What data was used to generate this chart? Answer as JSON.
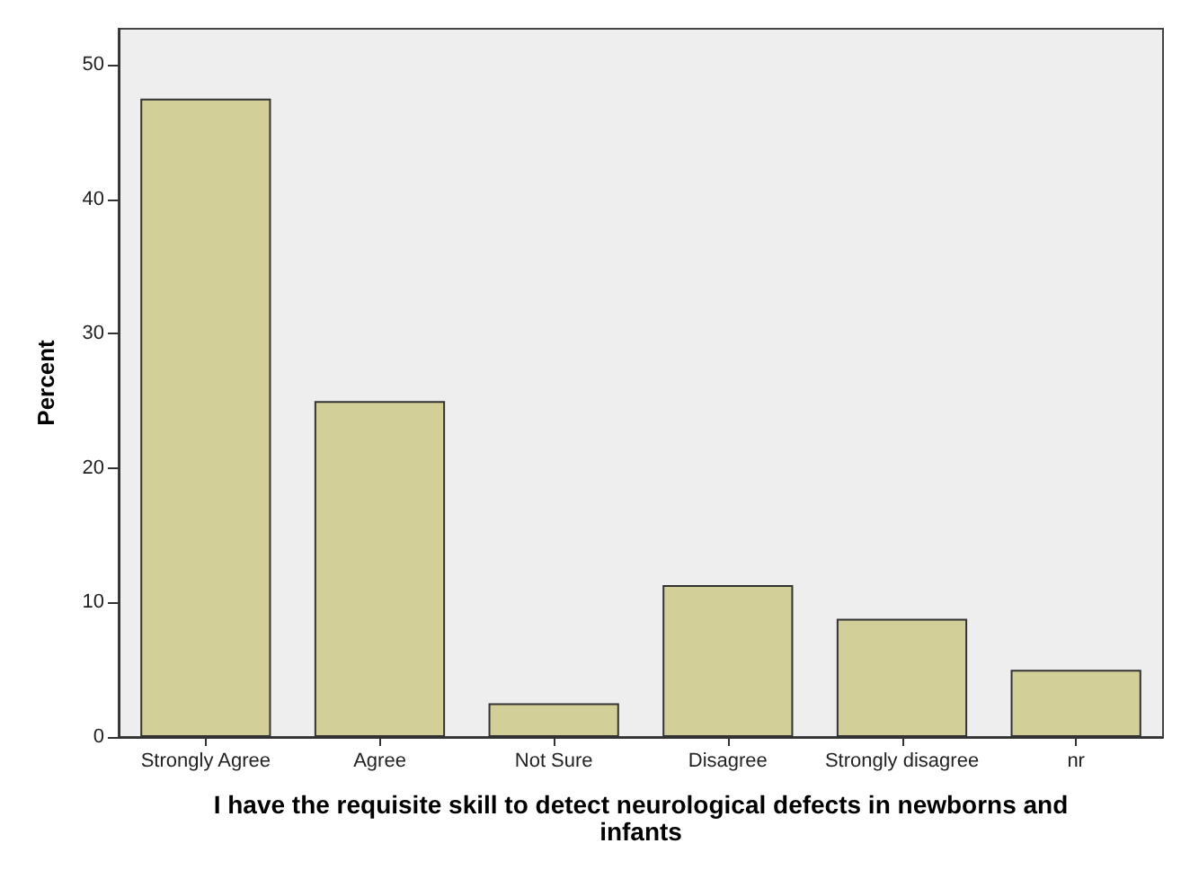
{
  "chart_data": {
    "type": "bar",
    "xlabel": "I have the requisite skill to detect neurological defects in newborns and\ninfants",
    "ylabel": "Percent",
    "categories": [
      "Strongly Agree",
      "Agree",
      "Not Sure",
      "Disagree",
      "Strongly disagree",
      "nr"
    ],
    "values": [
      47.5,
      25,
      2.5,
      11.3,
      8.8,
      5
    ],
    "color": "#d3cf98",
    "ylim": [
      0,
      52.7
    ],
    "yticks": [
      0,
      10,
      20,
      30,
      40,
      50
    ],
    "grid": false
  }
}
